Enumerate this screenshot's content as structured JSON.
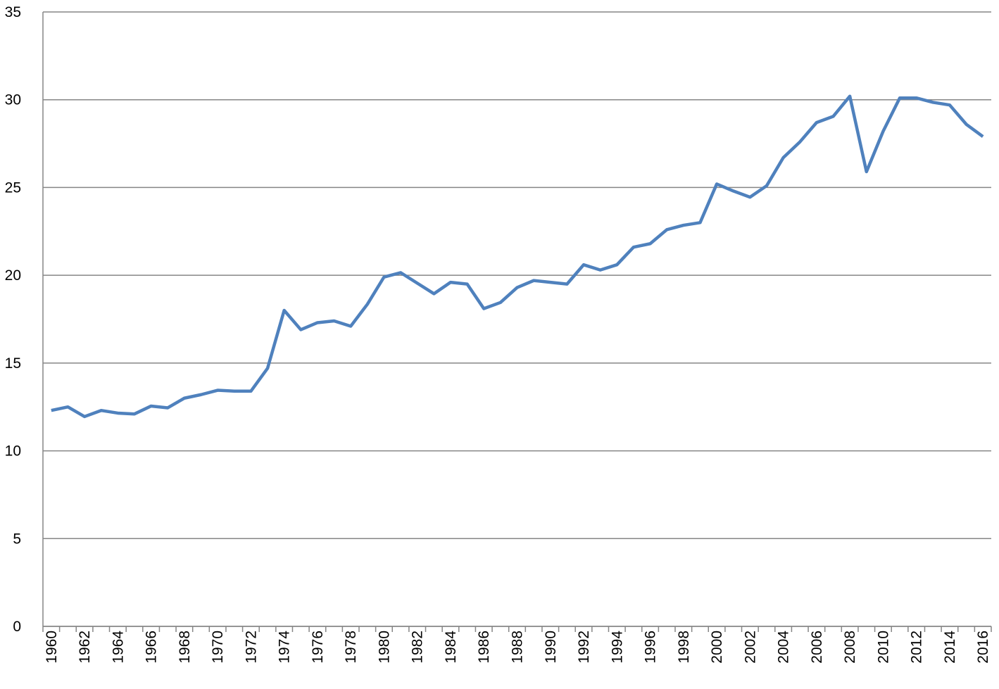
{
  "chart_data": {
    "type": "line",
    "categories": [
      "1960",
      null,
      "1962",
      null,
      "1964",
      null,
      "1966",
      null,
      "1968",
      null,
      "1970",
      null,
      "1972",
      null,
      "1974",
      null,
      "1976",
      null,
      "1978",
      null,
      "1980",
      null,
      "1982",
      null,
      "1984",
      null,
      "1986",
      null,
      "1988",
      null,
      "1990",
      null,
      "1992",
      null,
      "1994",
      null,
      "1996",
      null,
      "1998",
      null,
      "2000",
      null,
      "2002",
      null,
      "2004",
      null,
      "2006",
      null,
      "2008",
      null,
      "2010",
      null,
      "2012",
      null,
      "2014",
      null,
      "2016"
    ],
    "series": [
      {
        "color": "#4f81bd",
        "values": [
          12.3,
          12.5,
          11.95,
          12.3,
          12.15,
          12.1,
          12.55,
          12.45,
          13.0,
          13.2,
          13.45,
          13.4,
          13.4,
          14.7,
          18.0,
          16.9,
          17.3,
          17.4,
          17.1,
          18.35,
          19.9,
          20.15,
          19.55,
          18.95,
          19.6,
          19.5,
          18.1,
          18.45,
          19.3,
          19.7,
          19.6,
          19.5,
          20.6,
          20.3,
          20.6,
          21.6,
          21.8,
          22.6,
          22.85,
          23.0,
          25.2,
          24.8,
          24.45,
          25.1,
          26.7,
          27.6,
          28.7,
          29.05,
          30.2,
          25.9,
          28.2,
          30.1,
          30.1,
          29.85,
          29.7,
          28.6,
          27.9
        ]
      }
    ],
    "ylim": [
      0,
      35
    ],
    "yticks": [
      0,
      5,
      10,
      15,
      20,
      25,
      30,
      35
    ],
    "grid": true
  }
}
